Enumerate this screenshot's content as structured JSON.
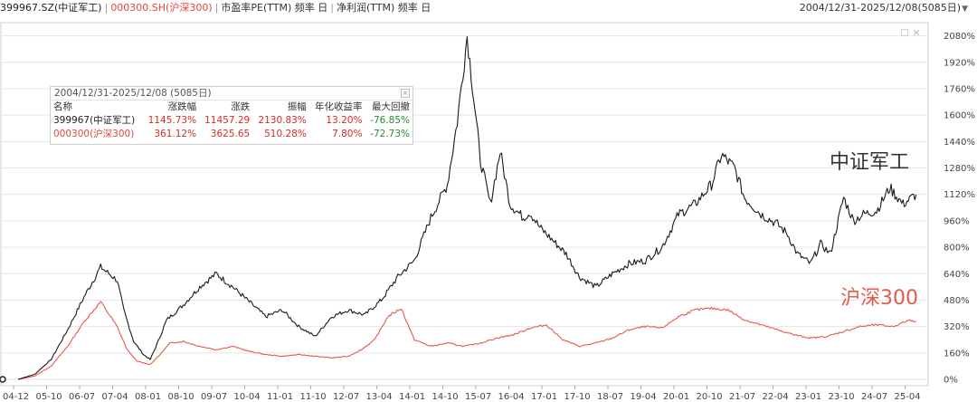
{
  "header": {
    "series1": "399967.SZ(中证军工)",
    "series2": "000300.SH(沪深300)",
    "indicator1": "市盈率PE(TTM) 频率 日",
    "indicator2": "净利润(TTM) 频率 日",
    "date_range": "2004/12/31-2025/12/08(5085日)"
  },
  "stats_table": {
    "title": "2004/12/31-2025/12/08 (5085日)",
    "columns": [
      "名称",
      "涨跌幅",
      "涨跌",
      "振幅",
      "年化收益率",
      "最大回撤"
    ],
    "rows": [
      {
        "name": "399967(中证军工)",
        "pct": "1145.73%",
        "chg": "11457.29",
        "amp": "2130.83%",
        "annual": "13.20%",
        "mdd": "-76.85%"
      },
      {
        "name": "000300(沪深300)",
        "pct": "361.12%",
        "chg": "3625.65",
        "amp": "510.28%",
        "annual": "7.80%",
        "mdd": "-72.73%"
      }
    ]
  },
  "annotations": {
    "series1": "中证军工",
    "series2": "沪深300"
  },
  "colors": {
    "series1": "#1a1a1a",
    "series2": "#e8584b",
    "grid": "#e6e6e6"
  },
  "chart_data": {
    "type": "line",
    "x_ticks": [
      "04-12",
      "05-10",
      "06-07",
      "07-04",
      "08-01",
      "08-10",
      "09-07",
      "10-04",
      "11-01",
      "11-10",
      "12-07",
      "13-04",
      "14-01",
      "14-10",
      "15-07",
      "16-04",
      "17-01",
      "17-10",
      "18-07",
      "19-04",
      "20-01",
      "20-10",
      "21-07",
      "22-04",
      "23-01",
      "23-10",
      "24-07",
      "25-04"
    ],
    "y_ticks": [
      "0%",
      "160%",
      "320%",
      "480%",
      "640%",
      "800%",
      "960%",
      "1120%",
      "1280%",
      "1440%",
      "1600%",
      "1760%",
      "1920%",
      "2080%"
    ],
    "ylim": [
      0,
      2160
    ],
    "series": [
      {
        "name": "中证军工",
        "x": [
          0,
          0.5,
          1,
          1.5,
          2,
          2.5,
          3,
          3.2,
          3.5,
          3.8,
          4,
          4.2,
          4.5,
          5,
          5.5,
          6,
          6.5,
          7,
          7.5,
          8,
          8.5,
          9,
          9.5,
          10,
          10.5,
          11,
          11.5,
          12,
          12.5,
          13,
          13.3,
          13.6,
          14,
          14.3,
          14.6,
          14.9,
          15.1,
          15.3,
          15.5,
          15.8,
          16.2,
          16.6,
          17,
          17.5,
          18,
          18.5,
          19,
          19.5,
          20,
          20.5,
          21,
          21.3,
          21.7,
          22,
          22.5,
          23,
          23.3,
          23.6,
          24,
          24.3,
          24.6,
          25,
          25.3,
          25.6,
          26,
          26.4,
          26.8,
          27.2
        ],
        "values": [
          0,
          30,
          120,
          300,
          500,
          680,
          600,
          420,
          230,
          150,
          120,
          210,
          360,
          450,
          560,
          640,
          560,
          470,
          380,
          420,
          320,
          260,
          380,
          420,
          390,
          480,
          620,
          720,
          980,
          1180,
          1560,
          2080,
          1330,
          1060,
          1380,
          1060,
          1020,
          980,
          1010,
          920,
          840,
          760,
          620,
          560,
          640,
          700,
          720,
          800,
          1000,
          1060,
          1180,
          1360,
          1280,
          1100,
          1000,
          940,
          880,
          760,
          700,
          820,
          760,
          1100,
          960,
          1000,
          1020,
          1160,
          1060,
          1120
        ]
      },
      {
        "name": "沪深300",
        "x": [
          0,
          0.5,
          1,
          1.5,
          2,
          2.5,
          3,
          3.3,
          3.6,
          4,
          4.3,
          4.6,
          5,
          5.5,
          6,
          6.5,
          7,
          7.5,
          8,
          8.5,
          9,
          9.5,
          10,
          10.4,
          10.8,
          11.2,
          11.6,
          12,
          12.5,
          13,
          13.5,
          14,
          14.5,
          15,
          15.5,
          16,
          16.5,
          17,
          17.5,
          18,
          18.5,
          19,
          19.5,
          20,
          20.5,
          21,
          21.5,
          22,
          22.5,
          23,
          23.5,
          24,
          24.5,
          25,
          25.5,
          26,
          26.5,
          27,
          27.2
        ],
        "values": [
          0,
          20,
          80,
          200,
          350,
          470,
          320,
          180,
          110,
          90,
          150,
          220,
          230,
          200,
          180,
          200,
          170,
          150,
          140,
          150,
          140,
          130,
          140,
          180,
          240,
          380,
          430,
          240,
          200,
          220,
          200,
          220,
          250,
          270,
          310,
          330,
          240,
          200,
          220,
          250,
          300,
          320,
          310,
          380,
          420,
          430,
          420,
          360,
          330,
          300,
          270,
          250,
          260,
          290,
          320,
          330,
          320,
          360,
          350
        ]
      }
    ]
  }
}
